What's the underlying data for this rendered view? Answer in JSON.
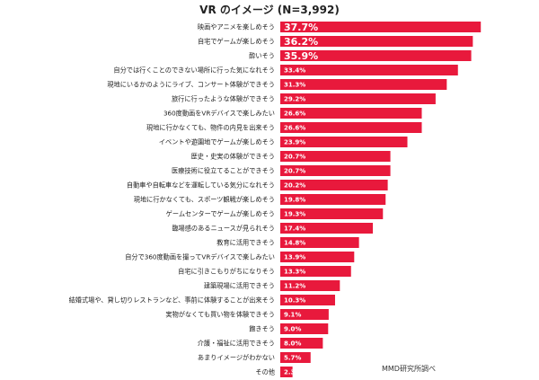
{
  "chart_data": {
    "type": "bar",
    "orientation": "horizontal",
    "title": "VR のイメージ (N=3,992)",
    "source": "MMD研究所調べ",
    "bar_color": "#e8193c",
    "categories": [
      "映画やアニメを楽しめそう",
      "自宅でゲームが楽しめそう",
      "酔いそう",
      "自分では行くことのできない場所に行った気になれそう",
      "現地にいるかのようにライブ、コンサート体験ができそう",
      "旅行に行ったような体験ができそう",
      "360度動画をVRデバイスで楽しみたい",
      "現地に行かなくても、物件の内見を出来そう",
      "イベントや遊園地でゲームが楽しめそう",
      "歴史・史実の体験ができそう",
      "医療技術に役立てることができそう",
      "自動車や自転車などを運転している気分になれそう",
      "現地に行かなくても、スポーツ観戦が楽しめそう",
      "ゲームセンターでゲームが楽しめそう",
      "臨場感のあるニュースが見られそう",
      "教育に活用できそう",
      "自分で360度動画を撮ってVRデバイスで楽しみたい",
      "自宅に引きこもりがちになりそう",
      "建築現場に活用できそう",
      "結婚式場や、貸し切りレストランなど、事前に体験することが出来そう",
      "実物がなくても買い物を体験できそう",
      "飽きそう",
      "介護・福祉に活用できそう",
      "あまりイメージがわかない",
      "その他"
    ],
    "values": [
      37.7,
      36.2,
      35.9,
      33.4,
      31.3,
      29.2,
      26.6,
      26.6,
      23.9,
      20.7,
      20.7,
      20.2,
      19.8,
      19.3,
      17.4,
      14.8,
      13.9,
      13.3,
      11.2,
      10.3,
      9.1,
      9.0,
      8.0,
      5.7,
      2.3
    ],
    "value_labels": [
      "37.7%",
      "36.2%",
      "35.9%",
      "33.4%",
      "31.3%",
      "29.2%",
      "26.6%",
      "26.6%",
      "23.9%",
      "20.7%",
      "20.7%",
      "20.2%",
      "19.8%",
      "19.3%",
      "17.4%",
      "14.8%",
      "13.9%",
      "13.3%",
      "11.2%",
      "10.3%",
      "9.1%",
      "9.0%",
      "8.0%",
      "5.7%",
      "2.3%"
    ],
    "xlim": [
      0,
      38
    ],
    "grid": false,
    "legend": "none"
  }
}
